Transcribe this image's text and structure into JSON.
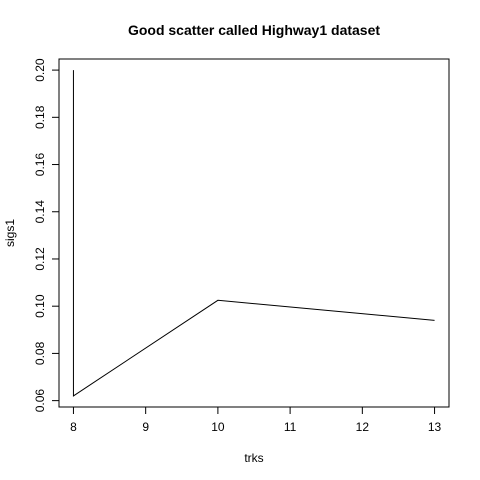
{
  "chart_data": {
    "type": "line",
    "title": "Good scatter called Highway1 dataset",
    "xlabel": "trks",
    "ylabel": "sigs1",
    "xlim": [
      7.8,
      13.2
    ],
    "ylim": [
      0.0573,
      0.2047
    ],
    "xticks": [
      "8",
      "9",
      "10",
      "11",
      "12",
      "13"
    ],
    "yticks": [
      "0.06",
      "0.08",
      "0.10",
      "0.12",
      "0.14",
      "0.16",
      "0.18",
      "0.20"
    ],
    "grid": false,
    "series": [
      {
        "x": [
          8,
          8,
          10,
          13
        ],
        "y": [
          0.2,
          0.062,
          0.1025,
          0.094
        ]
      }
    ]
  }
}
